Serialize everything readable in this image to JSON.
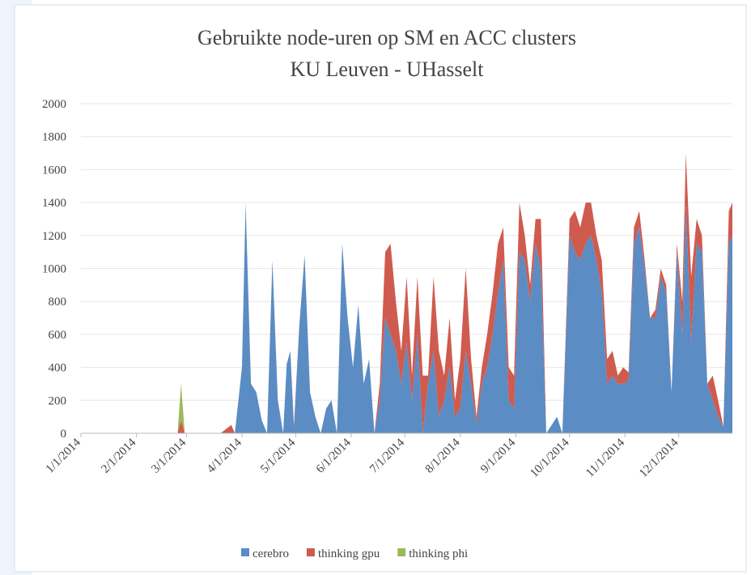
{
  "chart_data": {
    "type": "stacked_area",
    "title": "Gebruikte node-uren op SM en ACC clusters",
    "subtitle": "KU Leuven - UHasselt",
    "x": [
      "2014-01-01",
      "2014-01-20",
      "2014-02-10",
      "2014-02-24",
      "2014-02-26",
      "2014-02-28",
      "2014-03-20",
      "2014-03-26",
      "2014-03-28",
      "2014-04-01",
      "2014-04-03",
      "2014-04-06",
      "2014-04-09",
      "2014-04-12",
      "2014-04-15",
      "2014-04-18",
      "2014-04-21",
      "2014-04-24",
      "2014-04-26",
      "2014-04-28",
      "2014-04-30",
      "2014-05-03",
      "2014-05-06",
      "2014-05-09",
      "2014-05-12",
      "2014-05-15",
      "2014-05-18",
      "2014-05-21",
      "2014-05-24",
      "2014-05-27",
      "2014-05-30",
      "2014-06-02",
      "2014-06-05",
      "2014-06-08",
      "2014-06-11",
      "2014-06-14",
      "2014-06-17",
      "2014-06-20",
      "2014-06-23",
      "2014-06-26",
      "2014-06-29",
      "2014-07-02",
      "2014-07-05",
      "2014-07-08",
      "2014-07-11",
      "2014-07-14",
      "2014-07-17",
      "2014-07-20",
      "2014-07-23",
      "2014-07-26",
      "2014-07-29",
      "2014-08-01",
      "2014-08-04",
      "2014-08-07",
      "2014-08-10",
      "2014-08-13",
      "2014-08-16",
      "2014-08-19",
      "2014-08-22",
      "2014-08-25",
      "2014-08-28",
      "2014-08-31",
      "2014-09-03",
      "2014-09-06",
      "2014-09-09",
      "2014-09-12",
      "2014-09-15",
      "2014-09-18",
      "2014-09-24",
      "2014-09-27",
      "2014-10-01",
      "2014-10-04",
      "2014-10-07",
      "2014-10-10",
      "2014-10-13",
      "2014-10-16",
      "2014-10-19",
      "2014-10-22",
      "2014-10-25",
      "2014-10-28",
      "2014-10-31",
      "2014-11-03",
      "2014-11-06",
      "2014-11-09",
      "2014-11-12",
      "2014-11-15",
      "2014-11-18",
      "2014-11-21",
      "2014-11-24",
      "2014-11-27",
      "2014-11-30",
      "2014-12-03",
      "2014-12-05",
      "2014-12-08",
      "2014-12-11",
      "2014-12-14",
      "2014-12-17",
      "2014-12-20",
      "2014-12-23",
      "2014-12-26",
      "2014-12-29",
      "2014-12-31"
    ],
    "series": [
      {
        "name": "cerebro",
        "color": "#5b8cc4",
        "values": [
          0,
          0,
          0,
          0,
          0,
          0,
          0,
          0,
          0,
          400,
          1400,
          300,
          250,
          80,
          0,
          1050,
          200,
          0,
          420,
          500,
          30,
          650,
          1080,
          250,
          100,
          0,
          150,
          200,
          0,
          1150,
          700,
          400,
          780,
          300,
          450,
          0,
          200,
          700,
          600,
          500,
          300,
          550,
          200,
          600,
          0,
          300,
          500,
          100,
          200,
          400,
          100,
          150,
          500,
          300,
          50,
          300,
          400,
          600,
          850,
          1050,
          200,
          150,
          1100,
          1050,
          800,
          1150,
          1000,
          0,
          100,
          0,
          1200,
          1100,
          1050,
          1150,
          1200,
          1050,
          850,
          300,
          350,
          300,
          300,
          320,
          1150,
          1250,
          1000,
          700,
          700,
          950,
          850,
          250,
          1100,
          600,
          1400,
          550,
          1150,
          1100,
          300,
          200,
          100,
          40,
          1150,
          1200
        ]
      },
      {
        "name": "thinking gpu",
        "color": "#cf5b4f",
        "values": [
          0,
          0,
          0,
          0,
          80,
          0,
          0,
          50,
          0,
          0,
          0,
          0,
          0,
          0,
          0,
          0,
          0,
          0,
          0,
          0,
          20,
          0,
          0,
          0,
          0,
          0,
          0,
          0,
          0,
          0,
          0,
          0,
          0,
          0,
          0,
          0,
          100,
          400,
          550,
          300,
          200,
          400,
          150,
          350,
          350,
          50,
          450,
          400,
          150,
          300,
          100,
          300,
          500,
          150,
          50,
          100,
          200,
          250,
          300,
          200,
          200,
          200,
          300,
          150,
          100,
          150,
          300,
          0,
          0,
          0,
          100,
          250,
          200,
          250,
          200,
          150,
          200,
          150,
          150,
          50,
          100,
          50,
          100,
          100,
          50,
          0,
          50,
          50,
          50,
          0,
          50,
          200,
          300,
          400,
          150,
          100,
          0,
          150,
          100,
          0,
          200,
          200
        ]
      },
      {
        "name": "thinking phi",
        "color": "#9bbb59",
        "values": [
          0,
          0,
          0,
          0,
          220,
          0,
          0,
          0,
          0,
          0,
          0,
          0,
          0,
          0,
          0,
          0,
          0,
          0,
          0,
          0,
          0,
          0,
          0,
          0,
          0,
          0,
          0,
          0,
          0,
          0,
          0,
          0,
          0,
          0,
          0,
          0,
          0,
          0,
          0,
          0,
          0,
          0,
          0,
          0,
          0,
          0,
          0,
          0,
          0,
          0,
          0,
          0,
          0,
          0,
          0,
          0,
          0,
          0,
          0,
          0,
          0,
          0,
          0,
          0,
          0,
          0,
          0,
          0,
          0,
          0,
          0,
          0,
          0,
          0,
          0,
          0,
          0,
          0,
          0,
          0,
          0,
          0,
          0,
          0,
          0,
          0,
          0,
          0,
          0,
          0,
          0,
          0,
          0,
          0,
          0,
          0,
          0,
          0,
          0,
          0,
          0,
          0
        ]
      }
    ],
    "xlim": [
      "2014-01-01",
      "2014-12-31"
    ],
    "xticks": [
      {
        "value": "2014-01-01",
        "label": "1/1/2014"
      },
      {
        "value": "2014-02-01",
        "label": "2/1/2014"
      },
      {
        "value": "2014-03-01",
        "label": "3/1/2014"
      },
      {
        "value": "2014-04-01",
        "label": "4/1/2014"
      },
      {
        "value": "2014-05-01",
        "label": "5/1/2014"
      },
      {
        "value": "2014-06-01",
        "label": "6/1/2014"
      },
      {
        "value": "2014-07-01",
        "label": "7/1/2014"
      },
      {
        "value": "2014-08-01",
        "label": "8/1/2014"
      },
      {
        "value": "2014-09-01",
        "label": "9/1/2014"
      },
      {
        "value": "2014-10-01",
        "label": "10/1/2014"
      },
      {
        "value": "2014-11-01",
        "label": "11/1/2014"
      },
      {
        "value": "2014-12-01",
        "label": "12/1/2014"
      }
    ],
    "ylim": [
      0,
      2000
    ],
    "yticks": [
      0,
      200,
      400,
      600,
      800,
      1000,
      1200,
      1400,
      1600,
      1800,
      2000
    ],
    "grid": true,
    "legend": "bottom"
  }
}
